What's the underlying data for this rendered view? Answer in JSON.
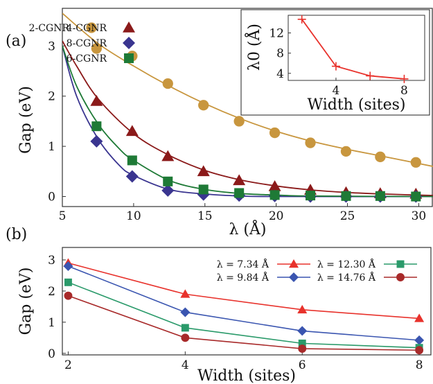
{
  "chart_data": [
    {
      "panel_label": "(a)",
      "type": "scatter",
      "xlabel": "λ (Å)",
      "ylabel": "Gap (eV)",
      "xlim": [
        5,
        31
      ],
      "ylim": [
        -0.2,
        3.75
      ],
      "xticks": [
        5,
        10,
        15,
        20,
        25,
        30
      ],
      "yticks": [
        0,
        1,
        2,
        3
      ],
      "legend_position": "top-left",
      "series": [
        {
          "name": "2-CGNR",
          "marker": "circle",
          "color": "#c8963e",
          "x": [
            7.4,
            9.9,
            12.4,
            14.9,
            17.4,
            19.9,
            22.4,
            24.9,
            27.3,
            29.8
          ],
          "y": [
            2.95,
            2.8,
            2.25,
            1.82,
            1.5,
            1.27,
            1.07,
            0.9,
            0.79,
            0.68
          ],
          "fit": [
            [
              5,
              3.65
            ],
            [
              7.5,
              3.05
            ],
            [
              10,
              2.6
            ],
            [
              12.5,
              2.2
            ],
            [
              15,
              1.85
            ],
            [
              17.5,
              1.55
            ],
            [
              20,
              1.3
            ],
            [
              22.5,
              1.1
            ],
            [
              25,
              0.94
            ],
            [
              27.5,
              0.8
            ],
            [
              31,
              0.6
            ]
          ]
        },
        {
          "name": "4-CGNR",
          "marker": "triangle",
          "color": "#8b1a1a",
          "x": [
            7.4,
            9.9,
            12.4,
            14.9,
            17.4,
            19.9,
            22.4,
            24.9,
            27.3,
            29.8
          ],
          "y": [
            1.9,
            1.3,
            0.8,
            0.5,
            0.32,
            0.2,
            0.13,
            0.08,
            0.06,
            0.05
          ],
          "fit": [
            [
              5,
              3.1
            ],
            [
              6,
              2.6
            ],
            [
              7.5,
              1.95
            ],
            [
              10,
              1.25
            ],
            [
              12.5,
              0.82
            ],
            [
              15,
              0.52
            ],
            [
              17.5,
              0.33
            ],
            [
              20,
              0.21
            ],
            [
              22.5,
              0.13
            ],
            [
              25,
              0.08
            ],
            [
              27.5,
              0.05
            ],
            [
              31,
              0.02
            ]
          ]
        },
        {
          "name": "8-CGNR",
          "marker": "diamond",
          "color": "#3a3590",
          "x": [
            7.4,
            9.9,
            12.4,
            14.9,
            17.4,
            19.9,
            22.4,
            24.9,
            27.3,
            29.8
          ],
          "y": [
            1.1,
            0.4,
            0.12,
            0.04,
            0.02,
            0.01,
            0.0,
            0.0,
            0.0,
            0.0
          ],
          "fit": [
            [
              5,
              3.0
            ],
            [
              6,
              2.0
            ],
            [
              7.5,
              1.15
            ],
            [
              9,
              0.62
            ],
            [
              10,
              0.42
            ],
            [
              12.5,
              0.14
            ],
            [
              15,
              0.05
            ],
            [
              17.5,
              0.01
            ],
            [
              20,
              0.0
            ],
            [
              31,
              0.0
            ]
          ]
        },
        {
          "name": "6-CGNR",
          "marker": "square",
          "color": "#1e7a36",
          "x": [
            7.4,
            9.9,
            12.4,
            14.9,
            17.4,
            19.9,
            22.4,
            24.9,
            27.3,
            29.8
          ],
          "y": [
            1.4,
            0.72,
            0.3,
            0.14,
            0.07,
            0.03,
            0.02,
            0.01,
            0.01,
            0.0
          ],
          "fit": [
            [
              5,
              3.0
            ],
            [
              6,
              2.2
            ],
            [
              7.5,
              1.45
            ],
            [
              9,
              0.95
            ],
            [
              10,
              0.72
            ],
            [
              12.5,
              0.32
            ],
            [
              15,
              0.14
            ],
            [
              17.5,
              0.06
            ],
            [
              20,
              0.03
            ],
            [
              22.5,
              0.01
            ],
            [
              31,
              0.0
            ]
          ]
        }
      ],
      "inset": {
        "type": "line",
        "xlabel": "Width (sites)",
        "ylabel": "λ0 (Å)",
        "xlim": [
          1.2,
          9.2
        ],
        "ylim": [
          2.6,
          15.5
        ],
        "xticks": [
          4,
          8
        ],
        "yticks": [
          4,
          8,
          12
        ],
        "color": "#e8322c",
        "marker": "plus",
        "x": [
          2,
          4,
          6,
          8
        ],
        "y": [
          14.7,
          5.4,
          3.5,
          2.9
        ]
      }
    },
    {
      "panel_label": "(b)",
      "type": "line",
      "xlabel": "Width (sites)",
      "ylabel": "Gap (eV)",
      "xlim": [
        1.9,
        8.2
      ],
      "ylim": [
        -0.05,
        3.4
      ],
      "xticks": [
        2,
        4,
        6,
        8
      ],
      "yticks": [
        0,
        1,
        2,
        3
      ],
      "legend_position": "top-right",
      "categories": [
        2,
        4,
        6,
        8
      ],
      "series": [
        {
          "name": "λ = 7.34 Å",
          "marker": "triangle",
          "color": "#e8322c",
          "values": [
            2.9,
            1.9,
            1.4,
            1.12
          ]
        },
        {
          "name": "λ = 9.84 Å",
          "marker": "diamond",
          "color": "#3a55b0",
          "values": [
            2.8,
            1.32,
            0.72,
            0.42
          ]
        },
        {
          "name": "λ = 12.30 Å",
          "marker": "square",
          "color": "#2a9a6a",
          "values": [
            2.28,
            0.82,
            0.32,
            0.18
          ]
        },
        {
          "name": "λ = 14.76 Å",
          "marker": "circle",
          "color": "#a82a2a",
          "values": [
            1.85,
            0.5,
            0.15,
            0.1
          ]
        }
      ]
    }
  ]
}
